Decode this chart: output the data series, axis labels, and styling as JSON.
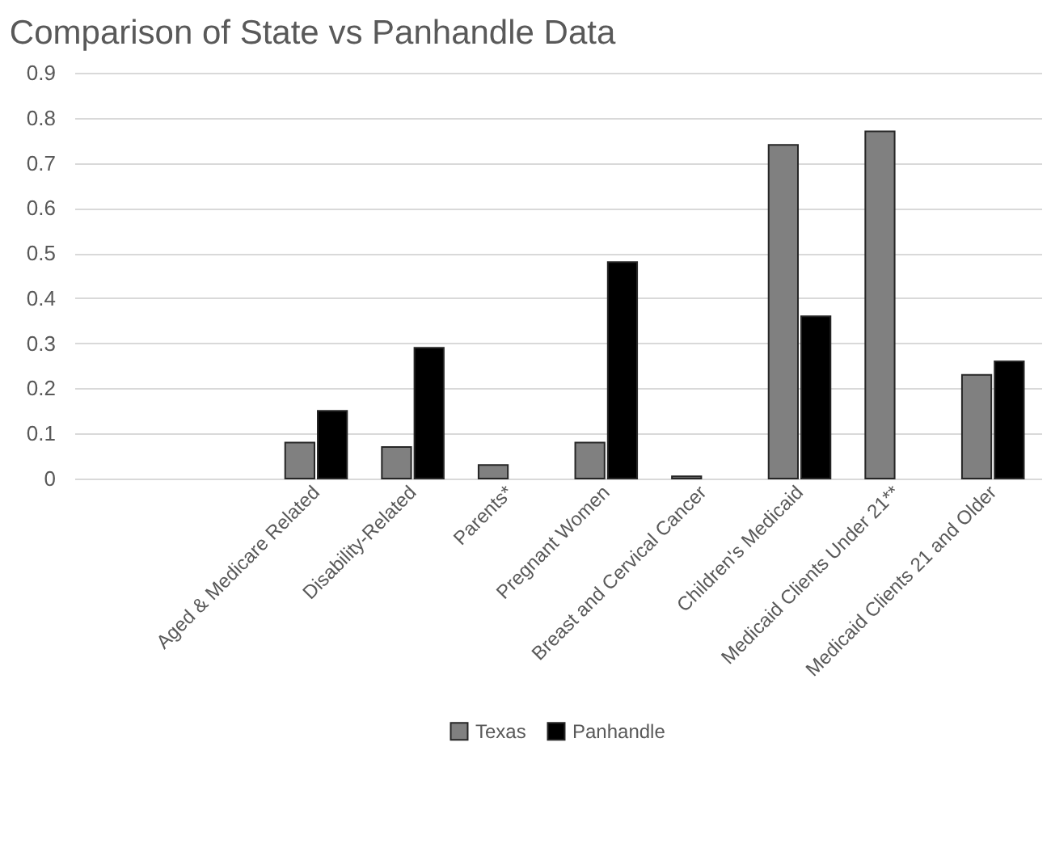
{
  "chart_data": {
    "type": "bar",
    "title": "Comparison of State vs Panhandle Data",
    "categories": [
      null,
      null,
      "Aged & Medicare Related",
      "Disability-Related",
      "Parents*",
      "Pregnant Women",
      "Breast and Cervical Cancer",
      "Children's Medicaid",
      "Medicaid Clients Under 21**",
      "Medicaid Clients 21 and Older"
    ],
    "series": [
      {
        "name": "Texas",
        "color": "#808080",
        "values": [
          null,
          null,
          0.08,
          0.07,
          0.03,
          0.08,
          0.005,
          0.74,
          0.77,
          0.23
        ]
      },
      {
        "name": "Panhandle",
        "color": "#000000",
        "values": [
          null,
          null,
          0.15,
          0.29,
          null,
          0.48,
          null,
          0.36,
          null,
          0.26
        ]
      }
    ],
    "ylim": [
      0,
      0.9
    ],
    "yticks": [
      0,
      0.1,
      0.2,
      0.3,
      0.4,
      0.5,
      0.6,
      0.7,
      0.8,
      0.9
    ],
    "grid": "y",
    "legend": "bottom"
  }
}
